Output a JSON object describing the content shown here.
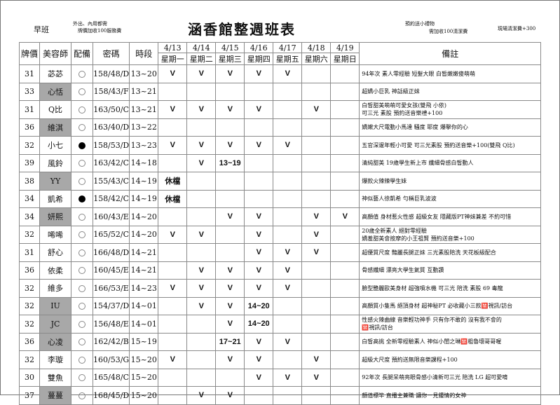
{
  "header": {
    "shift": "早班",
    "note_left_1": "外出、內用都需",
    "note_left_2": "牌價加收100服務費",
    "title": "涵香館整週班表",
    "note_right_1": "預約送小禮物",
    "note_right_2": "需加收100清潔費",
    "note_right_3": "現場清潔費+300"
  },
  "columns": {
    "price": "牌價",
    "stylist": "美容師",
    "equipped": "配備",
    "code": "密碼",
    "time": "時段",
    "remarks": "備註",
    "days": [
      {
        "date": "4/13",
        "weekday": "星期一"
      },
      {
        "date": "4/14",
        "weekday": "星期二"
      },
      {
        "date": "4/15",
        "weekday": "星期三"
      },
      {
        "date": "4/16",
        "weekday": "星期四"
      },
      {
        "date": "4/17",
        "weekday": "星期五"
      },
      {
        "date": "4/18",
        "weekday": "星期六"
      },
      {
        "date": "4/19",
        "weekday": "星期日"
      }
    ]
  },
  "rows": [
    {
      "price": "31",
      "name": "苾苾",
      "shaded": false,
      "equipped": "open",
      "code": "158/48/D",
      "time": "13~20",
      "days": [
        "V",
        "V",
        "V",
        "V",
        "V",
        "",
        ""
      ],
      "remark": "94年次 素人零經驗 短髮大眼 白皙嫩嫩傻萌萌"
    },
    {
      "price": "33",
      "name": "心恬",
      "shaded": true,
      "equipped": "open",
      "code": "158/43/F",
      "time": "13~21",
      "days": [
        "",
        "",
        "",
        "",
        "",
        "",
        ""
      ],
      "remark": "超嬌小巨乳 神話級正妹"
    },
    {
      "price": "31",
      "name": "Q比",
      "shaded": false,
      "equipped": "open",
      "code": "163/50/C",
      "time": "13~21",
      "days": [
        "V",
        "V",
        "V",
        "V",
        "",
        "V",
        ""
      ],
      "remark": "白皙甜美萌萌可愛女孩(雙飛 小依)\n可三光 素股 預約送音樂禮+100"
    },
    {
      "price": "36",
      "name": "維淇",
      "shaded": true,
      "equipped": "open",
      "code": "163/40/D",
      "time": "13~22",
      "days": [
        "",
        "",
        "",
        "",
        "",
        "",
        ""
      ],
      "remark": "嬌嫩大尺電動小馬達 騷度 耶度 爆擊你的心"
    },
    {
      "price": "32",
      "name": "小七",
      "shaded": false,
      "equipped": "filled",
      "code": "158/53/D",
      "time": "13~23",
      "days": [
        "V",
        "V",
        "V",
        "V",
        "V",
        "",
        ""
      ],
      "remark": "五官深邃年輕小可愛 可三光素股 預約送音樂+100(雙飛 Q比)"
    },
    {
      "price": "39",
      "name": "風鈴",
      "shaded": false,
      "equipped": "open",
      "code": "163/42/C",
      "time": "14~18",
      "days": [
        "",
        "V",
        "13~19",
        "",
        "",
        "",
        ""
      ],
      "remark": "清純甜美 19歲學生新上市 纖細骨感白皙動人"
    },
    {
      "price": "38",
      "name": "YY",
      "shaded": true,
      "equipped": "open",
      "code": "155/43/C",
      "time": "14~19",
      "days": [
        "休檔",
        "",
        "",
        "",
        "",
        "",
        ""
      ],
      "remark": "爆款火辣辣學生妹"
    },
    {
      "price": "34",
      "name": "凱希",
      "shaded": false,
      "equipped": "filled",
      "code": "158/42/C",
      "time": "14~19",
      "days": [
        "休檔",
        "",
        "",
        "",
        "",
        "",
        ""
      ],
      "remark": "神似藝人徐凱希 勻稱巨乳波波"
    },
    {
      "price": "34",
      "name": "妍熙",
      "shaded": true,
      "equipped": "open",
      "code": "160/43/E",
      "time": "14~20",
      "days": [
        "",
        "",
        "V",
        "V",
        "",
        "V",
        "V"
      ],
      "remark": "高顏值 身材惹火性感 超級女友 隱藏版PT神妹兼差 不約可惜"
    },
    {
      "price": "32",
      "name": "唏唏",
      "shaded": false,
      "equipped": "open",
      "code": "165/52/C",
      "time": "14~20",
      "days": [
        "V",
        "V",
        "",
        "V",
        "",
        "V",
        ""
      ],
      "remark": "20歲全新素人 絕對零經驗\n嬌羞甜美會按摩的小王祖賢 預約送音樂+100"
    },
    {
      "price": "31",
      "name": "舒心",
      "shaded": false,
      "equipped": "open",
      "code": "166/48/D",
      "time": "14~21",
      "days": [
        "",
        "",
        "",
        "V",
        "V",
        "V",
        ""
      ],
      "remark": "超優質尺度 豔麗長腿正妹 三光素股陪洗 天花板級配合"
    },
    {
      "price": "36",
      "name": "依柔",
      "shaded": false,
      "equipped": "open",
      "code": "160/45/E",
      "time": "14~21",
      "days": [
        "",
        "V",
        "V",
        "V",
        "V",
        "",
        ""
      ],
      "remark": "骨感纖細 漂亮大學生氣質 互動讚"
    },
    {
      "price": "32",
      "name": "維多",
      "shaded": false,
      "equipped": "open",
      "code": "166/53/E",
      "time": "14~23",
      "days": [
        "V",
        "V",
        "V",
        "V",
        "V",
        "",
        ""
      ],
      "remark": "臉型艷麗歐美身材 超強噴水機 可三光 陪洗 素股 69 毒龍"
    },
    {
      "price": "32",
      "name": "IU",
      "shaded": true,
      "equipped": "open",
      "code": "154/37/D",
      "time": "14~01",
      "days": [
        "",
        "V",
        "V",
        "14~20",
        "",
        "",
        ""
      ],
      "remark": "高顏質小隻馬 絕頂身材 超神秘PT 必收藏小三款🈲視訊/訪台"
    },
    {
      "price": "32",
      "name": "JC",
      "shaded": true,
      "equipped": "open",
      "code": "156/48/E",
      "time": "14~01",
      "days": [
        "",
        "",
        "V",
        "14~20",
        "",
        "",
        ""
      ],
      "remark": "性感火辣曲線 音樂輕功神手 只有你不敢的 沒有我不會的\n🈲視訊/訪台"
    },
    {
      "price": "36",
      "name": "心凌",
      "shaded": true,
      "equipped": "open",
      "code": "162/42/B",
      "time": "15~19",
      "days": [
        "",
        "",
        "17~21",
        "V",
        "V",
        "",
        ""
      ],
      "remark": "白皙高挑 全新零經驗素人 神似小閨之琳🈲粗魯壞哥哥喔"
    },
    {
      "price": "32",
      "name": "李璇",
      "shaded": false,
      "equipped": "open",
      "code": "160/53/G",
      "time": "15~20",
      "days": [
        "V",
        "",
        "V",
        "V",
        "",
        "V",
        ""
      ],
      "remark": "超級大尺度 預約送無限音樂課程+100"
    },
    {
      "price": "30",
      "name": "雙魚",
      "shaded": false,
      "equipped": "open",
      "code": "165/48/C",
      "time": "15~20",
      "days": [
        "",
        "",
        "",
        "V",
        "V",
        "V",
        ""
      ],
      "remark": "92年次 長腿呆萌亮眼骨感小清新可三光 陪洗 LG 超可愛唷"
    },
    {
      "price": "37",
      "name": "蔓蔓",
      "shaded": true,
      "equipped": "open",
      "code": "168/45/D",
      "time": "15~20",
      "days": [
        "",
        "V",
        "V",
        "",
        "",
        "",
        ""
      ],
      "remark": "顏值標竿 直播主兼職 讓你一見鍾情的女神"
    }
  ]
}
